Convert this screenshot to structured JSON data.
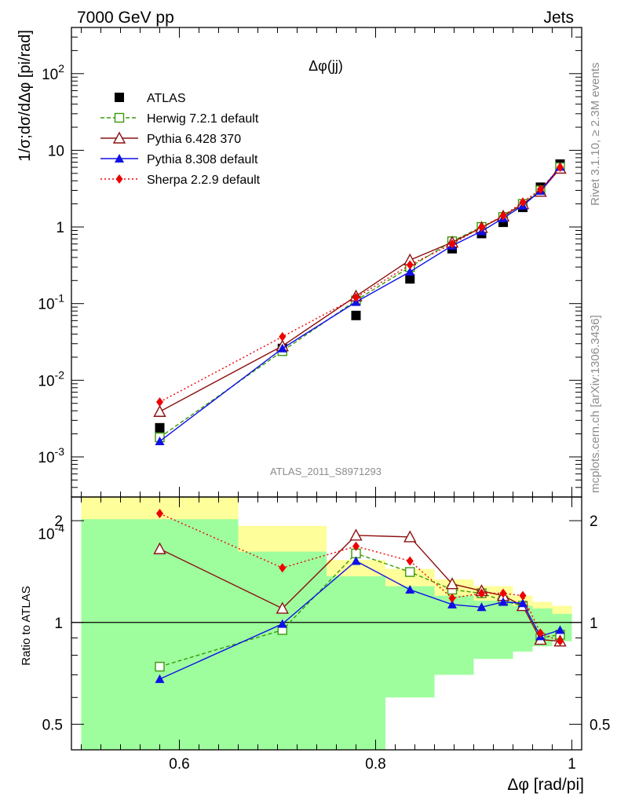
{
  "header": {
    "energy_label": "7000 GeV pp",
    "category_label": "Jets",
    "side_label_rivet": "Rivet 3.1.10, ≥ 2.3M events",
    "side_label_mcplots": "mcplots.cern.ch [arXiv:1306.3436]"
  },
  "chart_data": {
    "type": "line",
    "title": "Δφ(jj)",
    "analysis_label": "ATLAS_2011_S8971293",
    "xlabel": "Δφ [rad/pi]",
    "ylabel": "1/σ;dσ/dΔφ [pi/rad]",
    "ratio_ylabel": "Ratio to ATLAS",
    "xlim": [
      0.49,
      1.01
    ],
    "ylim": [
      0.0003,
      400
    ],
    "yscale": "log",
    "ratio_ylim": [
      0.42,
      2.35
    ],
    "ratio_yscale": "log",
    "legend_position": "top-left",
    "x_ticks": [
      "0.6",
      "0.8",
      "1"
    ],
    "y_ticks": [
      "10^-4",
      "10^-3",
      "10^-2",
      "10^-1",
      "1",
      "10",
      "10^2"
    ],
    "ratio_ticks": [
      "0.5",
      "1",
      "2"
    ],
    "x": [
      0.58,
      0.705,
      0.78,
      0.835,
      0.878,
      0.908,
      0.93,
      0.95,
      0.968,
      0.988
    ],
    "series": [
      {
        "name": "ATLAS",
        "color": "#000000",
        "marker": "filled-square",
        "dash": "none",
        "values": [
          0.0024,
          0.026,
          0.07,
          0.21,
          0.52,
          0.82,
          1.15,
          1.8,
          3.3,
          6.6
        ],
        "ratio": [
          1,
          1,
          1,
          1,
          1,
          1,
          1,
          1,
          1,
          1
        ]
      },
      {
        "name": "Herwig 7.2.1 default",
        "color": "#3a9a0a",
        "marker": "open-square",
        "dash": "5,3",
        "values": [
          0.0018,
          0.024,
          0.11,
          0.3,
          0.65,
          1.0,
          1.35,
          2.0,
          3.0,
          6.0
        ],
        "ratio": [
          0.74,
          0.95,
          1.6,
          1.41,
          1.25,
          1.22,
          1.16,
          1.12,
          0.9,
          0.92
        ]
      },
      {
        "name": "Pythia 6.428 370",
        "color": "#8b1010",
        "marker": "open-triangle",
        "dash": "none",
        "values": [
          0.0039,
          0.028,
          0.125,
          0.37,
          0.63,
          0.98,
          1.38,
          2.0,
          2.9,
          5.8
        ],
        "ratio": [
          1.65,
          1.1,
          1.81,
          1.79,
          1.3,
          1.24,
          1.2,
          1.12,
          0.89,
          0.88
        ]
      },
      {
        "name": "Pythia 8.308 default",
        "color": "#1010e6",
        "marker": "filled-triangle",
        "dash": "none",
        "values": [
          0.0016,
          0.026,
          0.105,
          0.26,
          0.57,
          0.88,
          1.3,
          1.9,
          2.95,
          6.1
        ],
        "ratio": [
          0.68,
          0.99,
          1.52,
          1.25,
          1.13,
          1.11,
          1.15,
          1.14,
          0.91,
          0.95
        ]
      },
      {
        "name": "Sherpa 2.2.9 default",
        "color": "#ee0000",
        "marker": "filled-diamond",
        "dash": "2,3",
        "values": [
          0.0052,
          0.037,
          0.12,
          0.32,
          0.6,
          0.99,
          1.4,
          2.1,
          3.1,
          6.0
        ],
        "ratio": [
          2.1,
          1.45,
          1.68,
          1.52,
          1.18,
          1.22,
          1.22,
          1.2,
          0.93,
          0.88
        ]
      }
    ],
    "ratio_bands": {
      "edges": [
        0.5,
        0.66,
        0.75,
        0.81,
        0.86,
        0.9,
        0.94,
        0.96,
        0.98,
        1.0
      ],
      "inner_lo": [
        0.42,
        0.42,
        0.42,
        0.6,
        0.7,
        0.78,
        0.82,
        0.85,
        0.88
      ],
      "inner_hi": [
        2.02,
        1.62,
        1.37,
        1.28,
        1.2,
        1.16,
        1.12,
        1.1,
        1.06
      ],
      "outer_lo": [
        0.42,
        0.55,
        0.68,
        0.79,
        0.82,
        0.85,
        0.87,
        0.89,
        0.9
      ],
      "outer_hi": [
        2.35,
        1.93,
        1.53,
        1.44,
        1.34,
        1.28,
        1.2,
        1.15,
        1.12
      ],
      "inner_color": "#9efe9e",
      "outer_color": "#fefe9a"
    }
  }
}
